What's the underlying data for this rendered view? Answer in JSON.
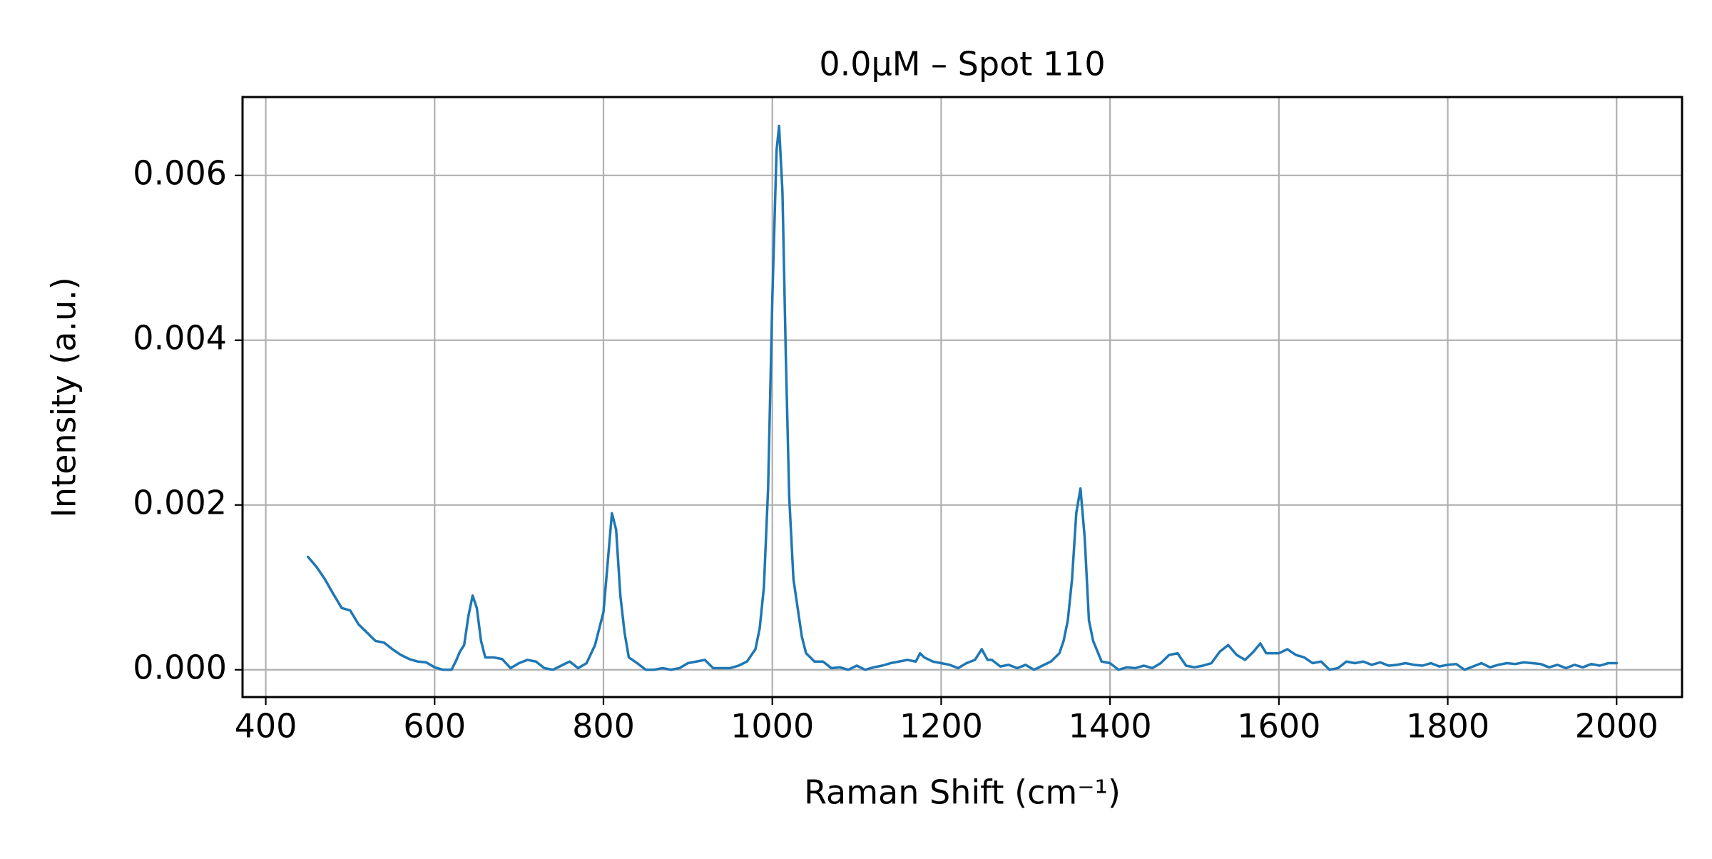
{
  "chart_data": {
    "type": "line",
    "title": "0.0μM – Spot 110",
    "x_label": "Raman Shift (cm⁻¹)",
    "y_label": "Intensity (a.u.)",
    "grid": true,
    "xlim": [
      372.5,
      2077.5
    ],
    "ylim": [
      -0.000331,
      0.006951
    ],
    "xticks": [
      400,
      600,
      800,
      1000,
      1200,
      1400,
      1600,
      1800,
      2000
    ],
    "yticks": [
      {
        "value": 0,
        "label": "0.000"
      },
      0.002,
      0.004,
      0.006
    ],
    "x": [
      450,
      460,
      470,
      480,
      490,
      500,
      510,
      520,
      530,
      540,
      550,
      560,
      570,
      580,
      590,
      600,
      610,
      620,
      625,
      630,
      635,
      640,
      645,
      650,
      655,
      660,
      670,
      680,
      690,
      700,
      710,
      720,
      730,
      740,
      750,
      760,
      770,
      780,
      790,
      795,
      800,
      805,
      810,
      815,
      820,
      825,
      830,
      840,
      850,
      860,
      870,
      880,
      890,
      900,
      910,
      920,
      930,
      940,
      950,
      960,
      970,
      980,
      985,
      990,
      995,
      1000,
      1005,
      1008,
      1012,
      1016,
      1020,
      1025,
      1030,
      1035,
      1040,
      1050,
      1060,
      1070,
      1080,
      1090,
      1100,
      1110,
      1120,
      1130,
      1140,
      1150,
      1160,
      1170,
      1175,
      1180,
      1190,
      1200,
      1210,
      1220,
      1230,
      1240,
      1248,
      1255,
      1260,
      1270,
      1280,
      1290,
      1300,
      1310,
      1320,
      1330,
      1340,
      1345,
      1350,
      1355,
      1360,
      1365,
      1370,
      1375,
      1380,
      1390,
      1400,
      1410,
      1420,
      1430,
      1440,
      1450,
      1460,
      1470,
      1480,
      1490,
      1500,
      1510,
      1520,
      1530,
      1540,
      1550,
      1560,
      1570,
      1578,
      1585,
      1600,
      1610,
      1620,
      1630,
      1640,
      1650,
      1660,
      1670,
      1680,
      1690,
      1700,
      1710,
      1720,
      1730,
      1740,
      1750,
      1760,
      1770,
      1780,
      1790,
      1800,
      1810,
      1820,
      1830,
      1840,
      1850,
      1860,
      1870,
      1880,
      1890,
      1900,
      1910,
      1920,
      1930,
      1940,
      1950,
      1960,
      1970,
      1980,
      1990,
      2000
    ],
    "series": [
      {
        "color": "#1f77b4",
        "values": [
          0.00137,
          0.00125,
          0.0011,
          0.00092,
          0.00075,
          0.00072,
          0.00055,
          0.00045,
          0.00035,
          0.00033,
          0.00025,
          0.00018,
          0.00013,
          0.0001,
          9e-05,
          3e-05,
          0.0,
          0.0,
          0.0001,
          0.00022,
          0.0003,
          0.00065,
          0.0009,
          0.00075,
          0.00035,
          0.00015,
          0.00015,
          0.00013,
          2e-05,
          8e-05,
          0.00012,
          0.0001,
          2e-05,
          0.0,
          5e-05,
          0.0001,
          2e-05,
          8e-05,
          0.0003,
          0.0005,
          0.0007,
          0.0013,
          0.0019,
          0.0017,
          0.0009,
          0.00045,
          0.00015,
          8e-05,
          0.0,
          0.0,
          2e-05,
          0.0,
          2e-05,
          8e-05,
          0.0001,
          0.00012,
          2e-05,
          2e-05,
          2e-05,
          5e-05,
          0.0001,
          0.00025,
          0.0005,
          0.001,
          0.0022,
          0.0045,
          0.0063,
          0.0066,
          0.0058,
          0.0038,
          0.0021,
          0.0011,
          0.00075,
          0.0004,
          0.0002,
          0.0001,
          0.0001,
          2e-05,
          3e-05,
          0.0,
          5e-05,
          0.0,
          3e-05,
          5e-05,
          8e-05,
          0.0001,
          0.00012,
          0.0001,
          0.0002,
          0.00015,
          0.0001,
          8e-05,
          6e-05,
          2e-05,
          8e-05,
          0.00012,
          0.00025,
          0.00012,
          0.00012,
          4e-05,
          6e-05,
          2e-05,
          6e-05,
          0.0,
          5e-05,
          0.0001,
          0.0002,
          0.00035,
          0.0006,
          0.0011,
          0.0019,
          0.0022,
          0.0016,
          0.0006,
          0.00035,
          0.0001,
          8e-05,
          0.0,
          3e-05,
          2e-05,
          5e-05,
          2e-05,
          8e-05,
          0.00018,
          0.0002,
          5e-05,
          3e-05,
          5e-05,
          8e-05,
          0.00022,
          0.0003,
          0.00018,
          0.00012,
          0.00022,
          0.00032,
          0.0002,
          0.0002,
          0.00025,
          0.00018,
          0.00015,
          8e-05,
          0.0001,
          0.0,
          2e-05,
          0.0001,
          8e-05,
          0.0001,
          6e-05,
          9e-05,
          5e-05,
          6e-05,
          8e-05,
          6e-05,
          5e-05,
          8e-05,
          4e-05,
          6e-05,
          7e-05,
          0.0,
          4e-05,
          8e-05,
          3e-05,
          6e-05,
          8e-05,
          7e-05,
          9e-05,
          8e-05,
          7e-05,
          3e-05,
          6e-05,
          2e-05,
          6e-05,
          3e-05,
          7e-05,
          5e-05,
          8e-05,
          8e-05
        ]
      }
    ]
  }
}
